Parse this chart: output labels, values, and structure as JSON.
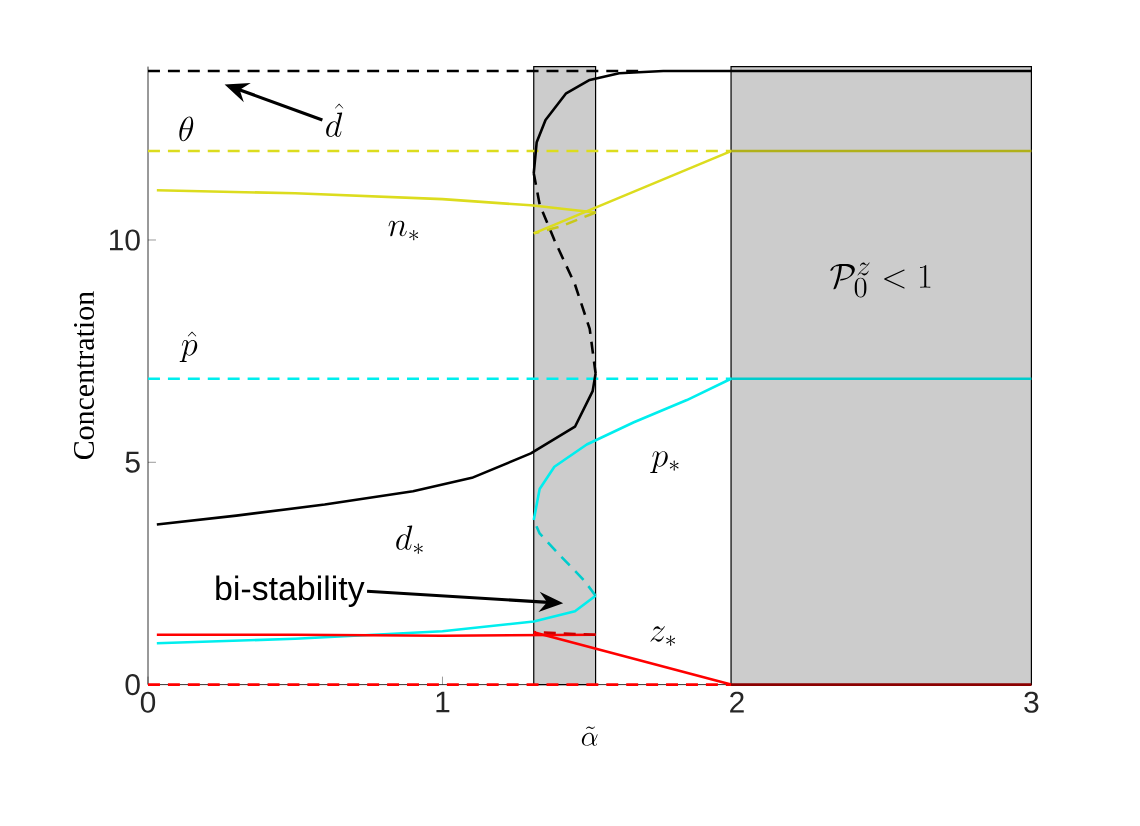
{
  "chart_data": {
    "type": "line",
    "xlabel": "\\tilde{\\alpha}",
    "ylabel": "Concentration",
    "xlim": [
      0,
      3
    ],
    "ylim": [
      0,
      13.9
    ],
    "xticks": [
      0,
      1,
      2,
      3
    ],
    "yticks": [
      0,
      5,
      10
    ],
    "grid": false,
    "bands": [
      {
        "axis": "x",
        "from": 1.31,
        "to": 1.52,
        "color": "#cccccc"
      },
      {
        "axis": "x",
        "from": 1.98,
        "to": 3,
        "color": "#cccccc",
        "label": "\\mathcal{P}_0^z < 1"
      }
    ],
    "series": [
      {
        "color": "#000000",
        "line_style": "dashed",
        "x": [
          0,
          1.69
        ],
        "values": [
          13.8,
          13.8
        ]
      },
      {
        "color": "#dcdc1e",
        "line_style": "dashed",
        "x": [
          0,
          1.98
        ],
        "values": [
          12,
          12
        ]
      },
      {
        "color": "#b0b01a",
        "line_style": "solid",
        "x": [
          1.98,
          3
        ],
        "values": [
          12,
          12
        ]
      },
      {
        "color": "#00eeee",
        "line_style": "dashed",
        "x": [
          0,
          1.98
        ],
        "values": [
          6.88,
          6.88
        ]
      },
      {
        "color": "#00cccc",
        "line_style": "solid",
        "x": [
          1.98,
          3
        ],
        "values": [
          6.88,
          6.88
        ]
      },
      {
        "color": "#ff0000",
        "line_style": "dashed",
        "x": [
          0,
          1.98
        ],
        "values": [
          0,
          0
        ]
      },
      {
        "color": "#8b0000",
        "line_style": "solid",
        "x": [
          1.98,
          3
        ],
        "values": [
          0,
          0
        ]
      },
      {
        "color": "#000000",
        "line_style": "solid",
        "x": [
          0.03,
          0.3,
          0.6,
          0.9,
          1.1,
          1.3,
          1.45,
          1.51,
          1.52
        ],
        "values": [
          3.6,
          3.8,
          4.05,
          4.35,
          4.65,
          5.2,
          5.8,
          6.6,
          7.0
        ]
      },
      {
        "color": "#000000",
        "line_style": "dashed",
        "x": [
          1.52,
          1.5,
          1.45,
          1.38,
          1.33,
          1.31
        ],
        "values": [
          7.0,
          8.0,
          9.0,
          10.0,
          10.8,
          11.5
        ]
      },
      {
        "color": "#000000",
        "line_style": "solid",
        "x": [
          1.31,
          1.32,
          1.35,
          1.42,
          1.5,
          1.6,
          1.75,
          3
        ],
        "values": [
          11.5,
          12.2,
          12.7,
          13.3,
          13.6,
          13.75,
          13.8,
          13.8
        ]
      },
      {
        "color": "#dcdc1e",
        "line_style": "solid",
        "x": [
          0.03,
          0.5,
          1.0,
          1.3,
          1.52
        ],
        "values": [
          11.12,
          11.05,
          10.92,
          10.78,
          10.62
        ]
      },
      {
        "color": "#c8c81a",
        "line_style": "dashed",
        "x": [
          1.52,
          1.4,
          1.31
        ],
        "values": [
          10.62,
          10.3,
          10.15
        ]
      },
      {
        "color": "#dcdc1e",
        "line_style": "solid",
        "x": [
          1.31,
          1.98
        ],
        "values": [
          10.15,
          12
        ]
      },
      {
        "color": "#00eeee",
        "line_style": "solid",
        "x": [
          0.03,
          0.5,
          1.0,
          1.31,
          1.45,
          1.52
        ],
        "values": [
          0.93,
          1.03,
          1.2,
          1.42,
          1.65,
          2.0
        ]
      },
      {
        "color": "#00cccc",
        "line_style": "dashed",
        "x": [
          1.52,
          1.48,
          1.4,
          1.33,
          1.31
        ],
        "values": [
          2.0,
          2.35,
          2.9,
          3.4,
          3.7
        ]
      },
      {
        "color": "#00eeee",
        "line_style": "solid",
        "x": [
          1.31,
          1.33,
          1.38,
          1.49,
          1.65,
          1.83,
          1.98
        ],
        "values": [
          3.7,
          4.4,
          4.9,
          5.4,
          5.9,
          6.4,
          6.88
        ]
      },
      {
        "color": "#ff0000",
        "line_style": "solid",
        "x": [
          0.03,
          0.5,
          1.0,
          1.52
        ],
        "values": [
          1.12,
          1.12,
          1.1,
          1.12
        ]
      },
      {
        "color": "#cc0000",
        "line_style": "dashed",
        "x": [
          1.52,
          1.31
        ],
        "values": [
          1.12,
          1.18
        ]
      },
      {
        "color": "#ff0000",
        "line_style": "solid",
        "x": [
          1.31,
          1.98
        ],
        "values": [
          1.18,
          0
        ]
      }
    ],
    "annotations": [
      "\\theta",
      "\\hat{d}",
      "n_*",
      "\\hat{p}",
      "d_*",
      "\\textrm{bi-stability}",
      "p_*",
      "z_*"
    ]
  }
}
